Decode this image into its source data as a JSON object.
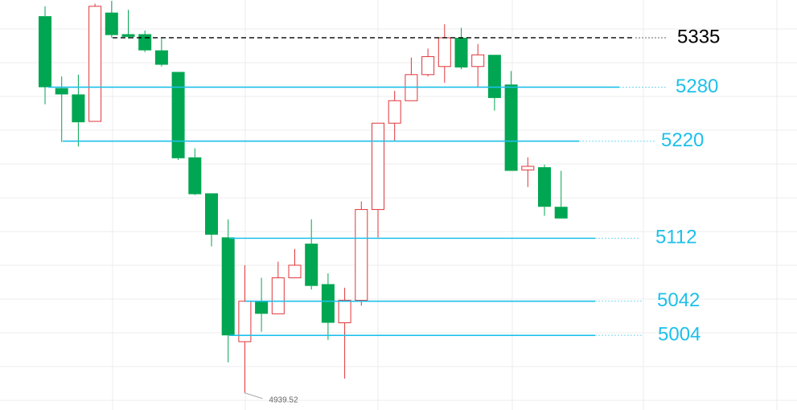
{
  "chart_data": {
    "type": "candlestick",
    "up_color": "#e0363a",
    "down_color": "#00a651",
    "ylim": [
      4921,
      5377
    ],
    "candles": [
      {
        "open": 5359,
        "high": 5370,
        "low": 5261,
        "close": 5280
      },
      {
        "open": 5279,
        "high": 5292,
        "low": 5219,
        "close": 5272
      },
      {
        "open": 5272,
        "high": 5294,
        "low": 5214,
        "close": 5241
      },
      {
        "open": 5242,
        "high": 5373,
        "low": 5242,
        "close": 5370
      },
      {
        "open": 5363,
        "high": 5376,
        "low": 5335,
        "close": 5338
      },
      {
        "open": 5339,
        "high": 5366,
        "low": 5334,
        "close": 5336
      },
      {
        "open": 5339,
        "high": 5343,
        "low": 5319,
        "close": 5321
      },
      {
        "open": 5321,
        "high": 5334,
        "low": 5303,
        "close": 5305
      },
      {
        "open": 5297,
        "high": 5297,
        "low": 5199,
        "close": 5201
      },
      {
        "open": 5202,
        "high": 5212,
        "low": 5160,
        "close": 5161
      },
      {
        "open": 5162,
        "high": 5162,
        "low": 5103,
        "close": 5116
      },
      {
        "open": 5113,
        "high": 5133,
        "low": 4974,
        "close": 5004
      },
      {
        "open": 4997,
        "high": 5082,
        "low": 4940,
        "close": 5042
      },
      {
        "open": 5042,
        "high": 5068,
        "low": 5008,
        "close": 5028
      },
      {
        "open": 5028,
        "high": 5086,
        "low": 5028,
        "close": 5068
      },
      {
        "open": 5068,
        "high": 5100,
        "low": 5068,
        "close": 5082
      },
      {
        "open": 5106,
        "high": 5133,
        "low": 5055,
        "close": 5059
      },
      {
        "open": 5061,
        "high": 5073,
        "low": 4999,
        "close": 5018
      },
      {
        "open": 5018,
        "high": 5057,
        "low": 4956,
        "close": 5043
      },
      {
        "open": 5043,
        "high": 5153,
        "low": 5037,
        "close": 5144
      },
      {
        "open": 5144,
        "high": 5240,
        "low": 5113,
        "close": 5240
      },
      {
        "open": 5240,
        "high": 5276,
        "low": 5220,
        "close": 5265
      },
      {
        "open": 5265,
        "high": 5313,
        "low": 5265,
        "close": 5294
      },
      {
        "open": 5294,
        "high": 5323,
        "low": 5292,
        "close": 5314
      },
      {
        "open": 5303,
        "high": 5350,
        "low": 5285,
        "close": 5335
      },
      {
        "open": 5335,
        "high": 5346,
        "low": 5300,
        "close": 5302
      },
      {
        "open": 5303,
        "high": 5328,
        "low": 5280,
        "close": 5316
      },
      {
        "open": 5316,
        "high": 5316,
        "low": 5254,
        "close": 5268
      },
      {
        "open": 5283,
        "high": 5298,
        "low": 5187,
        "close": 5187
      },
      {
        "open": 5188,
        "high": 5202,
        "low": 5169,
        "close": 5192
      },
      {
        "open": 5191,
        "high": 5194,
        "low": 5137,
        "close": 5147
      },
      {
        "open": 5147,
        "high": 5187,
        "low": 5134,
        "close": 5134
      }
    ],
    "levels": [
      {
        "value": 5335,
        "color": "#000000",
        "style": "dashed"
      },
      {
        "value": 5280,
        "color": "#1ec0ea",
        "style": "solid"
      },
      {
        "value": 5220,
        "color": "#1ec0ea",
        "style": "solid"
      },
      {
        "value": 5112,
        "color": "#1ec0ea",
        "style": "solid"
      },
      {
        "value": 5042,
        "color": "#1ec0ea",
        "style": "solid"
      },
      {
        "value": 5004,
        "color": "#1ec0ea",
        "style": "solid"
      }
    ],
    "low_annotation": 4939.52
  }
}
